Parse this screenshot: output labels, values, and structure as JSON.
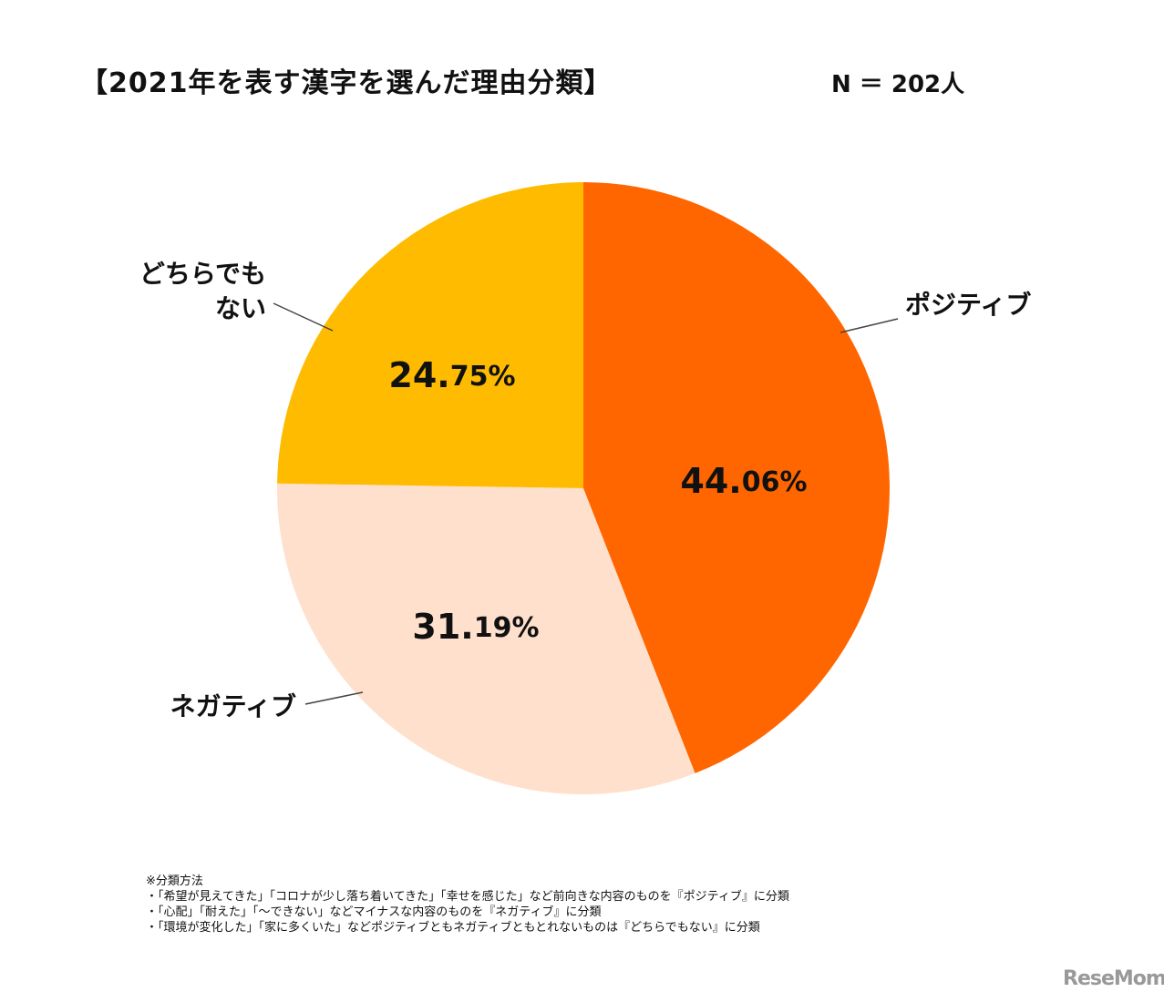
{
  "chart_data": {
    "type": "pie",
    "title": "【2021年を表す漢字を選んだ理由分類】",
    "sample_size": "N ＝ 202人",
    "start": "top",
    "direction": "clockwise",
    "slices": [
      {
        "label": "ポジティブ",
        "value": 44.06,
        "value_label": "44.06%",
        "color": "#FF6600"
      },
      {
        "label": "ネガティブ",
        "value": 31.19,
        "value_label": "31.19%",
        "color": "#FFE0CC"
      },
      {
        "label": "どちらでもない",
        "label_lines": [
          "どちらでも",
          "ない"
        ],
        "value": 24.75,
        "value_label": "24.75%",
        "color": "#FFBB00"
      }
    ]
  },
  "notes": [
    "※分類方法",
    "・「希望が見えてきた」「コロナが少し落ち着いてきた」「幸せを感じた」など前向きな内容のものを『ポジティブ』に分類",
    "・「心配」「耐えた」「～できない」などマイナスな内容のものを『ネガティブ』に分類",
    "・「環境が変化した」「家に多くいた」などポジティブともネガティブともとれないものは『どちらでもない』に分類"
  ],
  "logo": "ReseMom"
}
